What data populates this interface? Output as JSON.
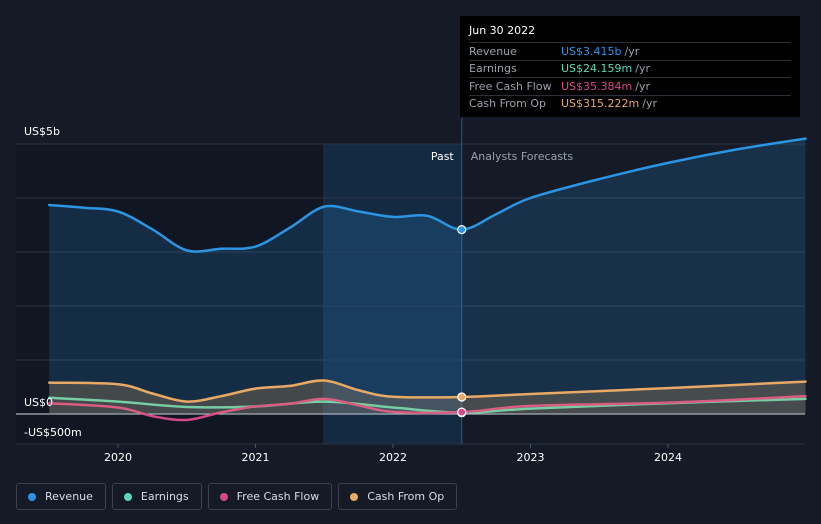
{
  "chart_data": {
    "type": "line",
    "x_ticks": [
      "2020",
      "2021",
      "2022",
      "2023",
      "2024"
    ],
    "y_ticks": [
      {
        "label": "US$5b",
        "value": 5000
      },
      {
        "label": "US$0",
        "value": 0
      },
      {
        "label": "-US$500m",
        "value": -500
      }
    ],
    "past_label": "Past",
    "forecast_label": "Analysts Forecasts",
    "divider_date": 2022.5,
    "series": [
      {
        "name": "Revenue",
        "color": "#2c95e3",
        "area": true,
        "x": [
          2019.5,
          2019.75,
          2020.0,
          2020.25,
          2020.5,
          2020.75,
          2021.0,
          2021.25,
          2021.5,
          2021.75,
          2022.0,
          2022.25,
          2022.5,
          2022.75,
          2023.0,
          2023.5,
          2024.0,
          2024.5,
          2025.0
        ],
        "y": [
          3870,
          3820,
          3750,
          3420,
          3030,
          3060,
          3100,
          3450,
          3840,
          3750,
          3650,
          3670,
          3415,
          3700,
          4000,
          4350,
          4650,
          4900,
          5100
        ]
      },
      {
        "name": "Earnings",
        "color": "#58d8b7",
        "x": [
          2019.5,
          2020.0,
          2020.5,
          2021.0,
          2021.5,
          2022.0,
          2022.5,
          2023.0,
          2024.0,
          2025.0
        ],
        "y": [
          300,
          230,
          130,
          140,
          230,
          120,
          24.159,
          100,
          200,
          280
        ]
      },
      {
        "name": "Free Cash Flow",
        "color": "#d5488a",
        "x": [
          2019.5,
          2020.0,
          2020.25,
          2020.5,
          2020.75,
          2021.0,
          2021.25,
          2021.5,
          2021.75,
          2022.0,
          2022.5,
          2023.0,
          2024.0,
          2025.0
        ],
        "y": [
          200,
          120,
          -40,
          -110,
          30,
          140,
          190,
          280,
          160,
          40,
          35.384,
          150,
          210,
          330
        ]
      },
      {
        "name": "Cash From Op",
        "color": "#e8a964",
        "area": true,
        "x": [
          2019.5,
          2020.0,
          2020.25,
          2020.5,
          2020.75,
          2021.0,
          2021.25,
          2021.5,
          2021.75,
          2022.0,
          2022.5,
          2023.0,
          2024.0,
          2025.0
        ],
        "y": [
          580,
          550,
          380,
          230,
          330,
          470,
          520,
          620,
          440,
          320,
          315.222,
          370,
          480,
          600
        ]
      }
    ]
  },
  "tooltip": {
    "date": "Jun 30 2022",
    "rows": [
      {
        "label": "Revenue",
        "value": "US$3.415b",
        "unit": "/yr",
        "color": "#2c95e3"
      },
      {
        "label": "Earnings",
        "value": "US$24.159m",
        "unit": "/yr",
        "color": "#58d8b7"
      },
      {
        "label": "Free Cash Flow",
        "value": "US$35.384m",
        "unit": "/yr",
        "color": "#d5488a"
      },
      {
        "label": "Cash From Op",
        "value": "US$315.222m",
        "unit": "/yr",
        "color": "#e8a964"
      }
    ]
  },
  "legend": [
    {
      "label": "Revenue",
      "color": "#2c95e3"
    },
    {
      "label": "Earnings",
      "color": "#58d8b7"
    },
    {
      "label": "Free Cash Flow",
      "color": "#d5488a"
    },
    {
      "label": "Cash From Op",
      "color": "#e8a964"
    }
  ]
}
